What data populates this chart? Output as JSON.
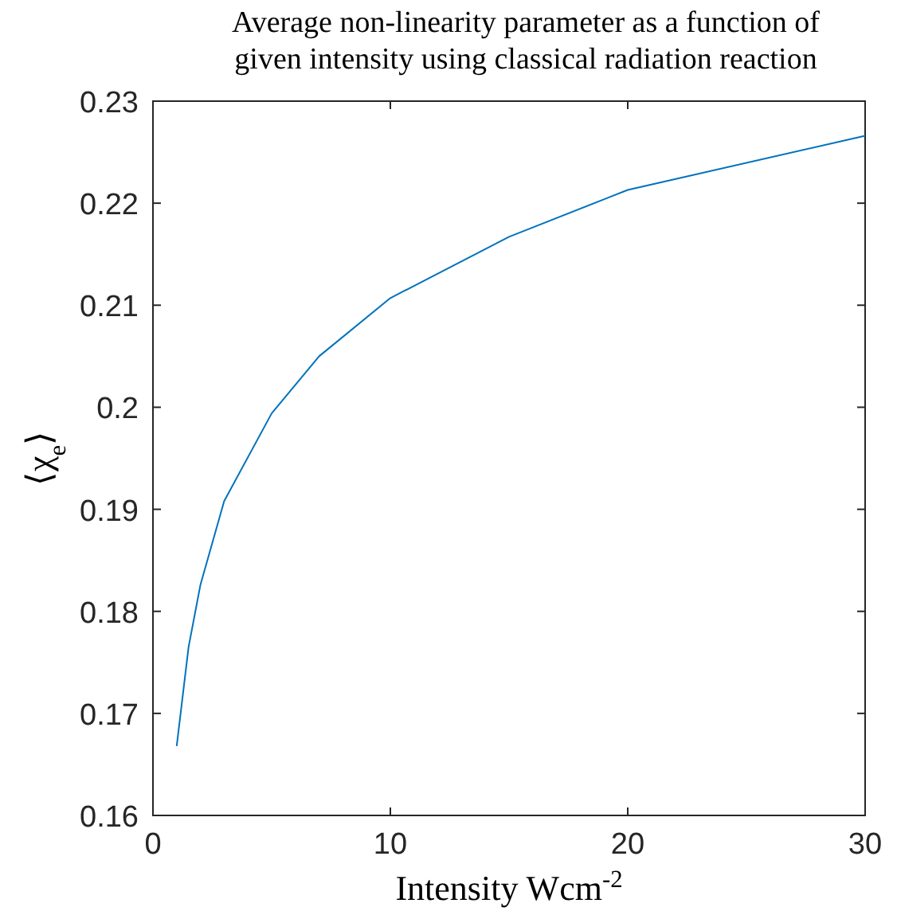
{
  "chart_data": {
    "type": "line",
    "title": "Average non-linearity parameter as a function of\ngiven intensity using classical radiation reaction",
    "xlabel": "Intensity Wcm$^{-2}$",
    "ylabel": "⟨χ$_{e}$⟩",
    "x": [
      1,
      1.5,
      2,
      3,
      5,
      7,
      10,
      15,
      20,
      30
    ],
    "series": [
      {
        "color": "#0072bd",
        "values": [
          0.1668,
          0.1765,
          0.1826,
          0.1908,
          0.1994,
          0.205,
          0.2107,
          0.2167,
          0.2213,
          0.2266
        ]
      }
    ],
    "xlim": [
      0,
      30
    ],
    "xticks": [
      0,
      10,
      20,
      30
    ],
    "ylim": [
      0.16,
      0.23
    ],
    "yticks": [
      {
        "value": 0.16,
        "label": "0.16"
      },
      {
        "value": 0.17,
        "label": "0.17"
      },
      {
        "value": 0.18,
        "label": "0.18"
      },
      {
        "value": 0.19,
        "label": "0.19"
      },
      {
        "value": 0.2,
        "label": "0.2"
      },
      {
        "value": 0.21,
        "label": "0.21"
      },
      {
        "value": 0.22,
        "label": "0.22"
      },
      {
        "value": 0.23,
        "label": "0.23"
      }
    ],
    "grid": false
  }
}
